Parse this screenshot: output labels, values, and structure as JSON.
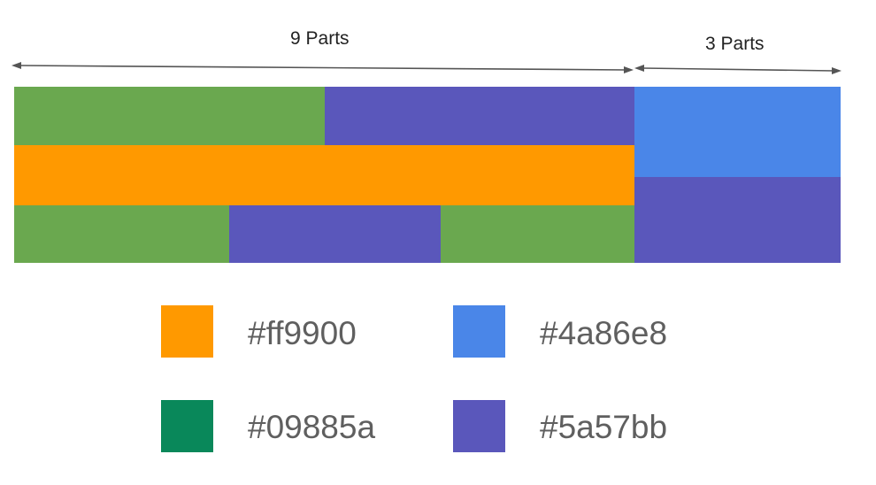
{
  "dimensions": {
    "left_label": "9 Parts",
    "right_label": "3 Parts"
  },
  "colors": {
    "green": "#6aa84f",
    "purple": "#5a57bb",
    "orange": "#ff9900",
    "blue": "#4a86e8",
    "arrow": "#555555"
  },
  "legend": [
    {
      "color": "#ff9900",
      "label": "#ff9900"
    },
    {
      "color": "#4a86e8",
      "label": "#4a86e8"
    },
    {
      "color": "#09885a",
      "label": "#09885a"
    },
    {
      "color": "#5a57bb",
      "label": "#5a57bb"
    }
  ]
}
